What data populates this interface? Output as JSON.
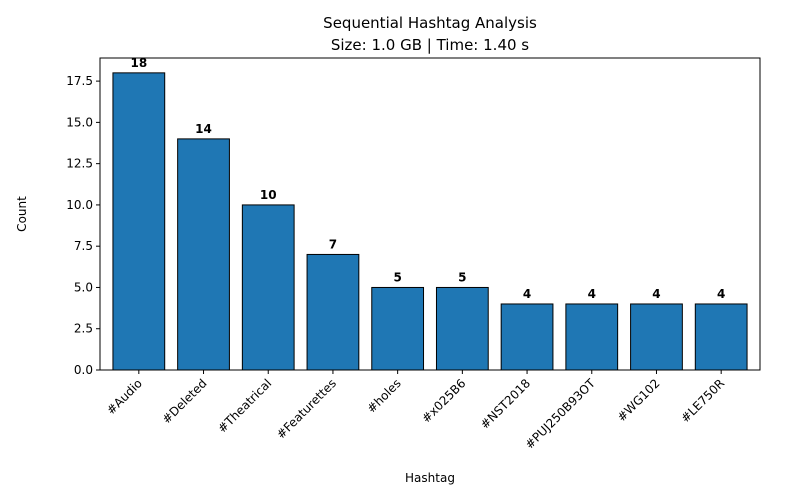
{
  "chart_data": {
    "type": "bar",
    "title": "Sequential Hashtag Analysis",
    "subtitle": "Size: 1.0 GB | Time: 1.40 s",
    "xlabel": "Hashtag",
    "ylabel": "Count",
    "categories": [
      "#Audio",
      "#Deleted",
      "#Theatrical",
      "#Featurettes",
      "#holes",
      "#x025B6",
      "#NST2018",
      "#PUJ250B93OT",
      "#WG102",
      "#LE750R"
    ],
    "values": [
      18,
      14,
      10,
      7,
      5,
      5,
      4,
      4,
      4,
      4
    ],
    "ylim": [
      0,
      18.9
    ],
    "yticks": [
      0.0,
      2.5,
      5.0,
      7.5,
      10.0,
      12.5,
      15.0,
      17.5
    ],
    "ytick_labels": [
      "0.0",
      "2.5",
      "5.0",
      "7.5",
      "10.0",
      "12.5",
      "15.0",
      "17.5"
    ],
    "grid": false,
    "bar_color": "#1f77b4",
    "edge_color": "#000000"
  }
}
